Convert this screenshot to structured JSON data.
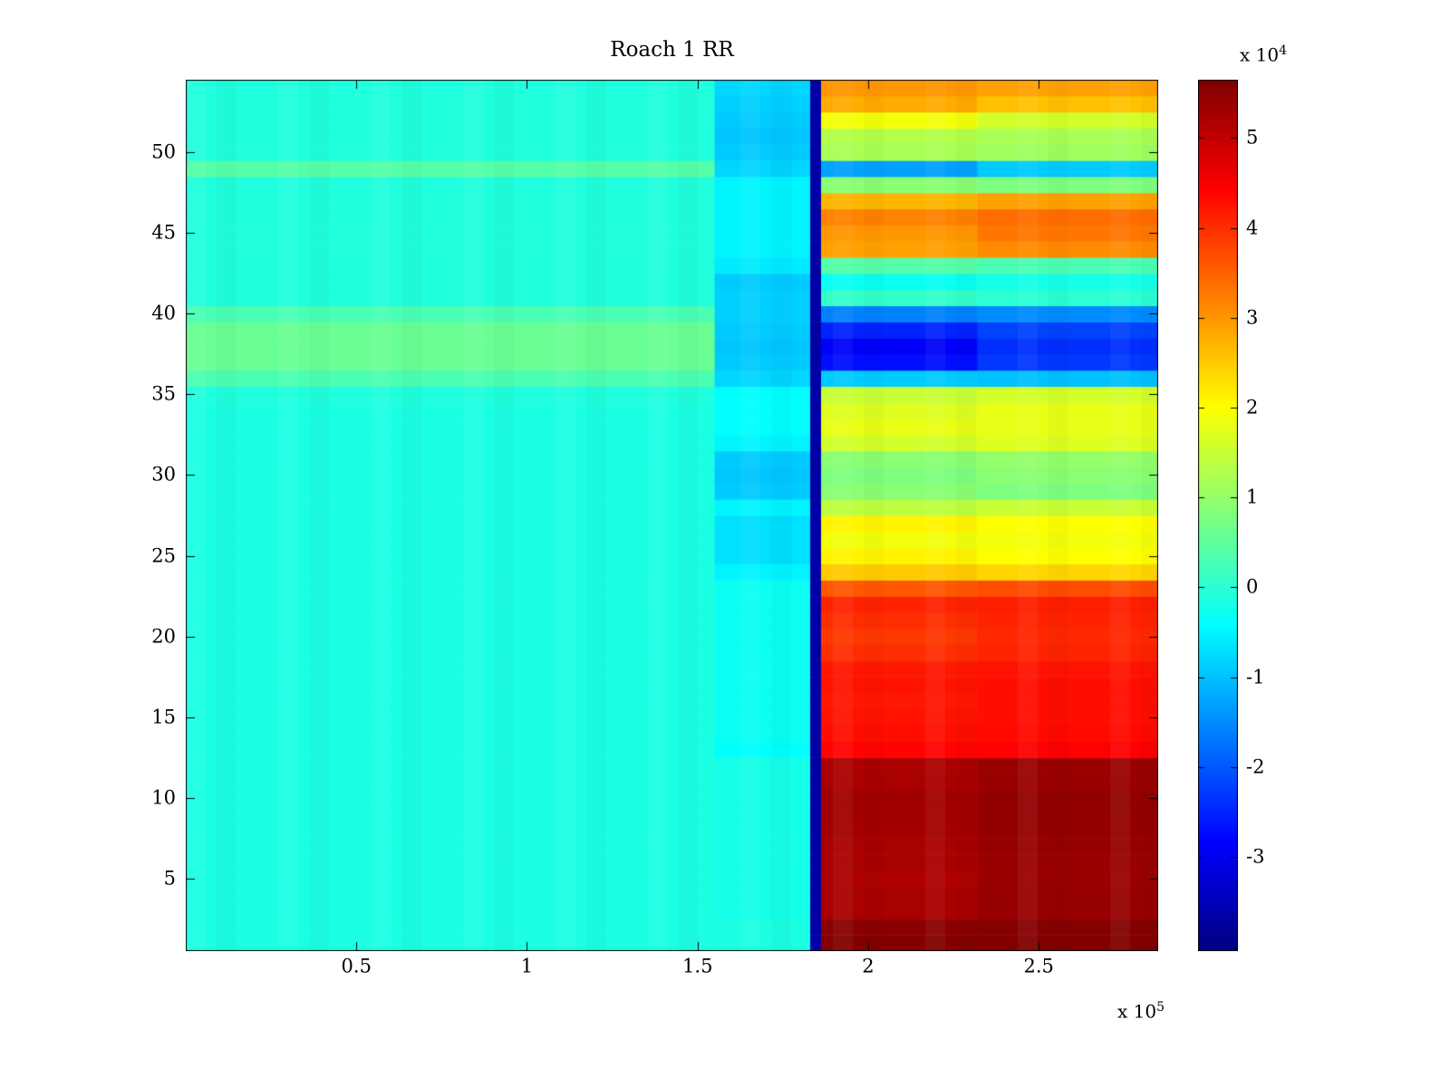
{
  "chart_data": {
    "type": "heatmap",
    "title": "Roach 1 RR",
    "colormap": "jet",
    "x_axis": {
      "tick_values": [
        0.5,
        1,
        1.5,
        2,
        2.5
      ],
      "tick_labels": [
        "0.5",
        "1",
        "1.5",
        "2",
        "2.5"
      ],
      "multiplier": {
        "text": "x 10",
        "exponent": "5"
      },
      "lim": [
        0,
        2.85
      ],
      "unit_scale": 100000
    },
    "y_axis": {
      "tick_values": [
        5,
        10,
        15,
        20,
        25,
        30,
        35,
        40,
        45,
        50
      ],
      "tick_labels": [
        "5",
        "10",
        "15",
        "20",
        "25",
        "30",
        "35",
        "40",
        "45",
        "50"
      ],
      "lim": [
        0.5,
        54.5
      ]
    },
    "colorbar": {
      "tick_values": [
        5,
        4,
        3,
        2,
        1,
        0,
        -1,
        -2,
        -3
      ],
      "tick_labels": [
        "5",
        "4",
        "3",
        "2",
        "1",
        "0",
        "-1",
        "-2",
        "-3"
      ],
      "multiplier": {
        "text": "x 10",
        "exponent": "4"
      },
      "clim": [
        -4.05,
        5.65
      ],
      "unit_scale": 10000
    },
    "value_note": "Heat values in units of 1e4. Rows listed bottom (y=1) to top (y=54). Each row = [left 0-1.55e5, pre-band 1.55-1.83e5, right 1.862-2.32e5, right 2.32-2.85e5]; a constant dark navy stripe spans x 1.83e5-1.862e5 for all rows.",
    "segment_bounds": [
      0,
      1.55,
      1.83,
      1.862,
      2.32,
      2.85
    ],
    "stripe_value": -3.7,
    "rows": [
      [
        -0.15,
        -0.15,
        5.6,
        5.62
      ],
      [
        -0.15,
        -0.15,
        5.55,
        5.58
      ],
      [
        -0.15,
        -0.2,
        5.25,
        5.42
      ],
      [
        -0.15,
        -0.2,
        5.25,
        5.42
      ],
      [
        -0.15,
        -0.2,
        5.2,
        5.38
      ],
      [
        -0.15,
        -0.2,
        5.25,
        5.4
      ],
      [
        -0.15,
        -0.2,
        5.25,
        5.42
      ],
      [
        -0.15,
        -0.2,
        5.3,
        5.45
      ],
      [
        -0.15,
        -0.2,
        5.32,
        5.46
      ],
      [
        -0.15,
        -0.2,
        5.32,
        5.46
      ],
      [
        -0.15,
        -0.2,
        5.25,
        5.4
      ],
      [
        -0.15,
        -0.2,
        5.22,
        5.38
      ],
      [
        -0.15,
        -0.4,
        4.4,
        4.45
      ],
      [
        -0.15,
        -0.3,
        4.3,
        4.35
      ],
      [
        -0.15,
        -0.3,
        4.25,
        4.3
      ],
      [
        -0.15,
        -0.3,
        4.2,
        4.3
      ],
      [
        -0.15,
        -0.3,
        4.25,
        4.3
      ],
      [
        -0.15,
        -0.3,
        4.2,
        4.25
      ],
      [
        -0.15,
        -0.3,
        4.0,
        4.1
      ],
      [
        -0.15,
        -0.3,
        3.9,
        4.05
      ],
      [
        -0.15,
        -0.3,
        4.0,
        4.1
      ],
      [
        -0.15,
        -0.3,
        4.1,
        4.15
      ],
      [
        -0.15,
        -0.3,
        3.6,
        3.7
      ],
      [
        -0.15,
        -0.5,
        2.5,
        2.4
      ],
      [
        -0.15,
        -0.7,
        2.1,
        2.0
      ],
      [
        -0.15,
        -0.7,
        1.9,
        1.9
      ],
      [
        -0.15,
        -0.7,
        2.1,
        2.0
      ],
      [
        -0.15,
        -0.5,
        1.4,
        1.5
      ],
      [
        -0.15,
        -0.9,
        0.9,
        0.8
      ],
      [
        -0.15,
        -0.95,
        0.8,
        0.9
      ],
      [
        -0.15,
        -0.9,
        0.9,
        1.0
      ],
      [
        -0.15,
        -0.5,
        1.6,
        1.7
      ],
      [
        -0.15,
        -0.4,
        1.8,
        1.8
      ],
      [
        -0.15,
        -0.4,
        1.7,
        1.8
      ],
      [
        -0.1,
        -0.4,
        1.5,
        1.6
      ],
      [
        0.3,
        -0.8,
        -0.9,
        -1.0
      ],
      [
        0.6,
        -0.9,
        -2.7,
        -2.3
      ],
      [
        0.6,
        -0.95,
        -2.9,
        -2.4
      ],
      [
        0.6,
        -0.9,
        -2.5,
        -2.2
      ],
      [
        0.3,
        -0.85,
        -1.6,
        -1.5
      ],
      [
        -0.1,
        -0.85,
        0.1,
        0.0
      ],
      [
        -0.1,
        -0.9,
        -0.3,
        -0.2
      ],
      [
        -0.1,
        -0.6,
        0.4,
        0.3
      ],
      [
        -0.1,
        -0.5,
        2.9,
        3.1
      ],
      [
        -0.1,
        -0.5,
        3.0,
        3.3
      ],
      [
        -0.1,
        -0.5,
        3.2,
        3.4
      ],
      [
        -0.1,
        -0.5,
        2.7,
        2.9
      ],
      [
        -0.1,
        -0.5,
        0.9,
        0.8
      ],
      [
        0.4,
        -0.8,
        -1.3,
        -0.9
      ],
      [
        -0.1,
        -0.9,
        1.2,
        1.1
      ],
      [
        -0.1,
        -0.95,
        1.3,
        1.2
      ],
      [
        -0.1,
        -0.9,
        1.9,
        1.6
      ],
      [
        -0.1,
        -0.85,
        2.8,
        2.6
      ],
      [
        -0.1,
        -0.8,
        3.0,
        2.9
      ]
    ]
  }
}
